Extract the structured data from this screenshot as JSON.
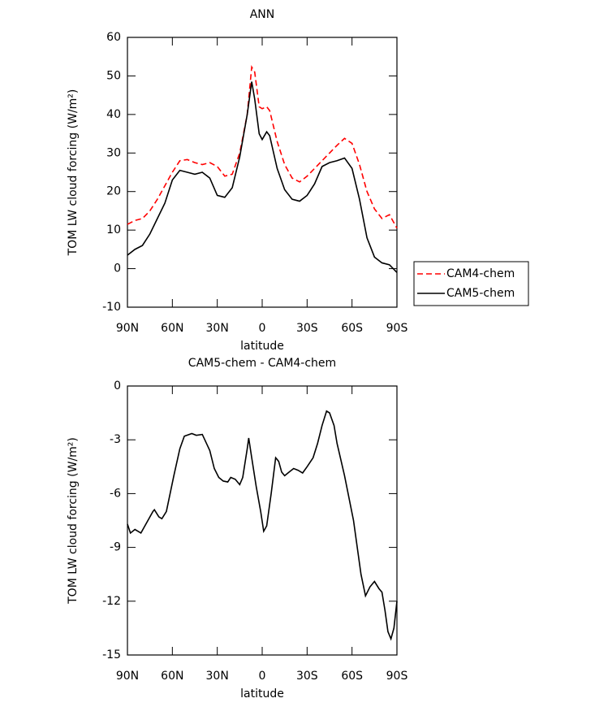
{
  "chart_data": [
    {
      "type": "line",
      "title": "ANN",
      "xlabel": "latitude",
      "ylabel": "TOM LW cloud forcing (W/m²)",
      "x": [
        90,
        85,
        80,
        75,
        70,
        65,
        60,
        55,
        50,
        45,
        40,
        35,
        30,
        25,
        20,
        15,
        10,
        7,
        5,
        2,
        0,
        -3,
        -5,
        -10,
        -15,
        -20,
        -25,
        -30,
        -35,
        -40,
        -45,
        -50,
        -55,
        -60,
        -65,
        -70,
        -75,
        -80,
        -85,
        -90
      ],
      "series": [
        {
          "name": "CAM4-chem",
          "color": "#ff0000",
          "dashed": true,
          "values": [
            11.5,
            12.5,
            13,
            15,
            18,
            21.5,
            25,
            28,
            28.3,
            27.5,
            27,
            27.5,
            26.5,
            24,
            24.5,
            30,
            40,
            52.3,
            51,
            42,
            41.5,
            42,
            41,
            33,
            27,
            23.5,
            22.5,
            24,
            26,
            28,
            30,
            32,
            33.8,
            32.5,
            27,
            20,
            15.5,
            13,
            14,
            10.5
          ]
        },
        {
          "name": "CAM5-chem",
          "color": "#000000",
          "dashed": false,
          "values": [
            3.5,
            5,
            6,
            9,
            13,
            17,
            23,
            25.5,
            25,
            24.5,
            25,
            23.5,
            19,
            18.5,
            21,
            29,
            40,
            48.5,
            44,
            35,
            33.5,
            35.5,
            34.5,
            26,
            20.5,
            18,
            17.5,
            19,
            22,
            26.5,
            27.5,
            28,
            28.7,
            26,
            18,
            8,
            3,
            1.5,
            1,
            -1
          ]
        }
      ],
      "xlim": [
        90,
        -90
      ],
      "xticks": [
        {
          "value": 90,
          "label": "90N"
        },
        {
          "value": 60,
          "label": "60N"
        },
        {
          "value": 30,
          "label": "30N"
        },
        0,
        {
          "value": -30,
          "label": "30S"
        },
        {
          "value": -60,
          "label": "60S"
        },
        {
          "value": -90,
          "label": "90S"
        }
      ],
      "ylim": [
        -10,
        60
      ],
      "yticks": [
        -10,
        0,
        10,
        20,
        30,
        40,
        50,
        60
      ],
      "legend": "right"
    },
    {
      "type": "line",
      "title": "CAM5-chem - CAM4-chem",
      "xlabel": "latitude",
      "ylabel": "TOM LW cloud forcing (W/m²)",
      "x": [
        90,
        88,
        85,
        81,
        73,
        72,
        69,
        67,
        64,
        59,
        55,
        52,
        47,
        44,
        40,
        35,
        32,
        29,
        26,
        23,
        21,
        18,
        15,
        13,
        10,
        9,
        7,
        4,
        1,
        -1,
        -3,
        -6,
        -9,
        -11,
        -13,
        -15,
        -18,
        -21,
        -24,
        -27,
        -30,
        -34,
        -37,
        -40,
        -43,
        -45,
        -48,
        -50,
        -55,
        -61,
        -66,
        -69,
        -72,
        -75,
        -78,
        -80,
        -82,
        -84,
        -86,
        -88,
        -90
      ],
      "values": [
        -7.7,
        -8.2,
        -8,
        -8.2,
        -7,
        -6.9,
        -7.3,
        -7.4,
        -7,
        -5,
        -3.5,
        -2.8,
        -2.65,
        -2.75,
        -2.7,
        -3.6,
        -4.6,
        -5.1,
        -5.3,
        -5.35,
        -5.1,
        -5.2,
        -5.5,
        -5.1,
        -3.5,
        -2.9,
        -4,
        -5.6,
        -7,
        -8.1,
        -7.8,
        -6,
        -4,
        -4.2,
        -4.8,
        -5,
        -4.8,
        -4.6,
        -4.7,
        -4.85,
        -4.5,
        -4,
        -3.2,
        -2.2,
        -1.4,
        -1.5,
        -2.2,
        -3.2,
        -5,
        -7.5,
        -10.5,
        -11.7,
        -11.2,
        -10.9,
        -11.3,
        -11.5,
        -12.5,
        -13.7,
        -14.1,
        -13.5,
        -12
      ],
      "color": "#000000",
      "xlim": [
        90,
        -90
      ],
      "xticks": [
        {
          "value": 90,
          "label": "90N"
        },
        {
          "value": 60,
          "label": "60N"
        },
        {
          "value": 30,
          "label": "30N"
        },
        0,
        {
          "value": -30,
          "label": "30S"
        },
        {
          "value": -60,
          "label": "60S"
        },
        {
          "value": -90,
          "label": "90S"
        }
      ],
      "ylim": [
        -15,
        0
      ],
      "yticks": [
        -15,
        -12,
        -9,
        -6,
        -3,
        0
      ]
    }
  ]
}
